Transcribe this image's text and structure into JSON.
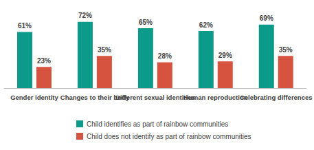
{
  "chart_data": {
    "type": "bar",
    "categories": [
      "Gender identity",
      "Changes to their body",
      "Different sexual identities",
      "Human reproduction",
      "Celebrating differences"
    ],
    "series": [
      {
        "name": "Child identifies as part of rainbow communities",
        "color": "#0c9a8a",
        "values": [
          61,
          72,
          65,
          62,
          69
        ],
        "value_labels": [
          "61%",
          "72%",
          "65%",
          "62%",
          "69%"
        ]
      },
      {
        "name": "Child does not identify as part of rainbow communities",
        "color": "#d5533f",
        "values": [
          23,
          35,
          28,
          29,
          35
        ],
        "value_labels": [
          "23%",
          "35%",
          "28%",
          "29%",
          "35%"
        ]
      }
    ],
    "ylim": [
      0,
      80
    ],
    "yticks": [
      0,
      80
    ],
    "grid": false,
    "legend": "bottom",
    "data_labels": true,
    "tick_labels": "x"
  }
}
